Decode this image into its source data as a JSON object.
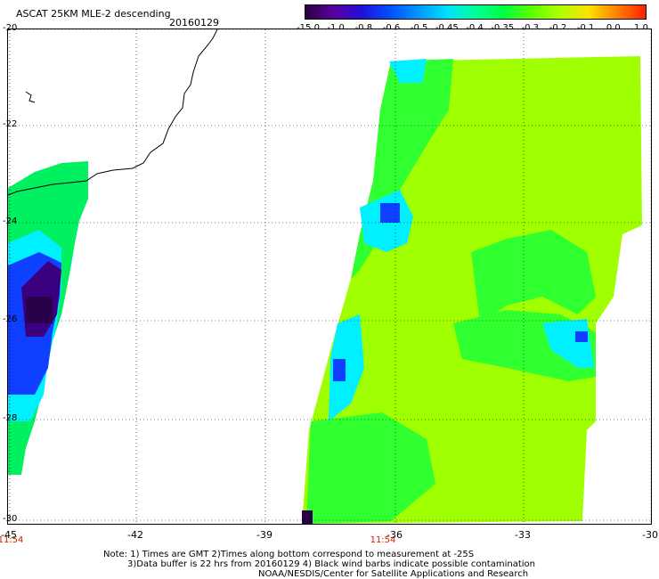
{
  "header": {
    "title": "ASCAT 25KM MLE-2 descending",
    "date": "20160129"
  },
  "colorbar": {
    "labels": [
      "-15.0",
      "-1.0",
      "-0.8",
      "-0.6",
      "-0.5",
      "-0.45",
      "-0.4",
      "-0.35",
      "-0.3",
      "-0.2",
      "-0.1",
      "0.0",
      "1.0"
    ],
    "colors": [
      "#2a0040",
      "#5a00a0",
      "#2010d8",
      "#0050ff",
      "#0098ff",
      "#00e0ff",
      "#00ff9a",
      "#00ff40",
      "#60ff00",
      "#b0ff00",
      "#ffe000",
      "#ff8000",
      "#ff2000"
    ]
  },
  "axes": {
    "latitude_labels": [
      "-20",
      "-22",
      "-24",
      "-26",
      "-28",
      "-30"
    ],
    "longitude_labels": [
      "-45",
      "-42",
      "-39",
      "-36",
      "-33",
      "-30"
    ],
    "time_labels": [
      "11:54",
      "11:54"
    ],
    "lat_range": [
      -30,
      -20
    ],
    "lon_range": [
      -45,
      -30
    ],
    "grid": "dotted"
  },
  "footer": {
    "note1": "Note: 1) Times are GMT 2)Times along bottom correspond to measurement at -25S",
    "note2": "3)Data buffer is 22 hrs from 20160129 4) Black wind barbs indicate possible contamination",
    "credit": "NOAA/NESDIS/Center for Satellite Applications and Research"
  },
  "map": {
    "colors": {
      "land_swath_green": "#00f060",
      "swath_main": "#a0ff00",
      "swath_green": "#30ff30",
      "cyan": "#00f0ff",
      "blue": "#1040ff",
      "purple": "#3a0080",
      "dark_purple": "#28004a"
    }
  }
}
